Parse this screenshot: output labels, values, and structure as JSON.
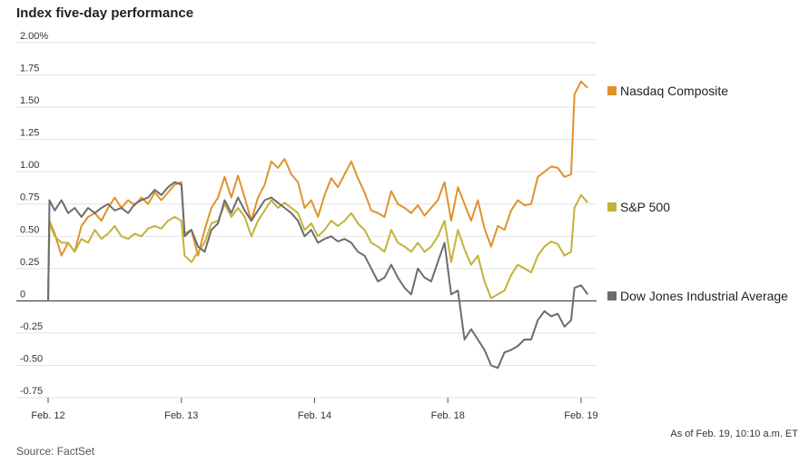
{
  "title": "Index five-day performance",
  "source": "Source: FactSet",
  "as_of": "As of Feb. 19, 10:10 a.m. ET",
  "chart_data": {
    "type": "line",
    "title": "Index five-day performance",
    "xlabel": "",
    "ylabel": "",
    "ylim": [
      -0.75,
      2.0
    ],
    "xlim": [
      0,
      8.2
    ],
    "x_ticks": [
      {
        "value": 0,
        "label": "Feb. 12"
      },
      {
        "value": 2,
        "label": "Feb. 13"
      },
      {
        "value": 4,
        "label": "Feb. 14"
      },
      {
        "value": 6,
        "label": "Feb. 18"
      },
      {
        "value": 8,
        "label": "Feb. 19"
      }
    ],
    "y_ticks": [
      {
        "value": 2.0,
        "label": "2.00%"
      },
      {
        "value": 1.75,
        "label": "1.75"
      },
      {
        "value": 1.5,
        "label": "1.50"
      },
      {
        "value": 1.25,
        "label": "1.25"
      },
      {
        "value": 1.0,
        "label": "1.00"
      },
      {
        "value": 0.75,
        "label": "0.75"
      },
      {
        "value": 0.5,
        "label": "0.50"
      },
      {
        "value": 0.25,
        "label": "0.25"
      },
      {
        "value": 0,
        "label": "0"
      },
      {
        "value": -0.25,
        "label": "-0.25"
      },
      {
        "value": -0.5,
        "label": "-0.50"
      },
      {
        "value": -0.75,
        "label": "-0.75"
      }
    ],
    "grid": "horizontal",
    "legend_position": "right (label at end of each line)",
    "series": [
      {
        "name": "Nasdaq Composite",
        "color": "#e0922c",
        "points": [
          [
            0,
            0
          ],
          [
            0.02,
            0.62
          ],
          [
            0.1,
            0.52
          ],
          [
            0.2,
            0.35
          ],
          [
            0.3,
            0.45
          ],
          [
            0.4,
            0.38
          ],
          [
            0.5,
            0.58
          ],
          [
            0.6,
            0.65
          ],
          [
            0.7,
            0.68
          ],
          [
            0.8,
            0.62
          ],
          [
            0.9,
            0.72
          ],
          [
            1.0,
            0.8
          ],
          [
            1.1,
            0.72
          ],
          [
            1.2,
            0.78
          ],
          [
            1.3,
            0.74
          ],
          [
            1.4,
            0.8
          ],
          [
            1.5,
            0.75
          ],
          [
            1.6,
            0.84
          ],
          [
            1.7,
            0.78
          ],
          [
            1.8,
            0.84
          ],
          [
            1.9,
            0.9
          ],
          [
            2.0,
            0.92
          ],
          [
            2.05,
            0.52
          ],
          [
            2.15,
            0.55
          ],
          [
            2.25,
            0.35
          ],
          [
            2.35,
            0.55
          ],
          [
            2.45,
            0.72
          ],
          [
            2.55,
            0.8
          ],
          [
            2.65,
            0.96
          ],
          [
            2.75,
            0.8
          ],
          [
            2.85,
            0.97
          ],
          [
            2.95,
            0.8
          ],
          [
            3.05,
            0.62
          ],
          [
            3.15,
            0.8
          ],
          [
            3.25,
            0.9
          ],
          [
            3.35,
            1.08
          ],
          [
            3.45,
            1.03
          ],
          [
            3.55,
            1.1
          ],
          [
            3.65,
            0.98
          ],
          [
            3.75,
            0.92
          ],
          [
            3.85,
            0.72
          ],
          [
            3.95,
            0.78
          ],
          [
            4.05,
            0.65
          ],
          [
            4.15,
            0.82
          ],
          [
            4.25,
            0.95
          ],
          [
            4.35,
            0.88
          ],
          [
            4.45,
            0.98
          ],
          [
            4.55,
            1.08
          ],
          [
            4.65,
            0.95
          ],
          [
            4.75,
            0.84
          ],
          [
            4.85,
            0.7
          ],
          [
            4.95,
            0.68
          ],
          [
            5.05,
            0.65
          ],
          [
            5.15,
            0.85
          ],
          [
            5.25,
            0.75
          ],
          [
            5.35,
            0.72
          ],
          [
            5.45,
            0.68
          ],
          [
            5.55,
            0.74
          ],
          [
            5.65,
            0.66
          ],
          [
            5.75,
            0.72
          ],
          [
            5.85,
            0.78
          ],
          [
            5.95,
            0.92
          ],
          [
            6.05,
            0.62
          ],
          [
            6.15,
            0.88
          ],
          [
            6.25,
            0.75
          ],
          [
            6.35,
            0.62
          ],
          [
            6.45,
            0.78
          ],
          [
            6.55,
            0.56
          ],
          [
            6.65,
            0.42
          ],
          [
            6.75,
            0.58
          ],
          [
            6.85,
            0.55
          ],
          [
            6.95,
            0.7
          ],
          [
            7.05,
            0.78
          ],
          [
            7.15,
            0.74
          ],
          [
            7.25,
            0.75
          ],
          [
            7.35,
            0.96
          ],
          [
            7.45,
            1.0
          ],
          [
            7.55,
            1.04
          ],
          [
            7.65,
            1.03
          ],
          [
            7.75,
            0.96
          ],
          [
            7.85,
            0.98
          ],
          [
            7.9,
            1.6
          ],
          [
            8.0,
            1.7
          ],
          [
            8.1,
            1.65
          ]
        ]
      },
      {
        "name": "S&P 500",
        "color": "#c3b33a",
        "points": [
          [
            0,
            0
          ],
          [
            0.02,
            0.6
          ],
          [
            0.1,
            0.5
          ],
          [
            0.2,
            0.45
          ],
          [
            0.3,
            0.45
          ],
          [
            0.4,
            0.38
          ],
          [
            0.5,
            0.48
          ],
          [
            0.6,
            0.45
          ],
          [
            0.7,
            0.55
          ],
          [
            0.8,
            0.48
          ],
          [
            0.9,
            0.52
          ],
          [
            1.0,
            0.58
          ],
          [
            1.1,
            0.5
          ],
          [
            1.2,
            0.48
          ],
          [
            1.3,
            0.52
          ],
          [
            1.4,
            0.5
          ],
          [
            1.5,
            0.56
          ],
          [
            1.6,
            0.58
          ],
          [
            1.7,
            0.56
          ],
          [
            1.8,
            0.62
          ],
          [
            1.9,
            0.65
          ],
          [
            2.0,
            0.62
          ],
          [
            2.05,
            0.35
          ],
          [
            2.15,
            0.3
          ],
          [
            2.25,
            0.38
          ],
          [
            2.35,
            0.45
          ],
          [
            2.45,
            0.6
          ],
          [
            2.55,
            0.62
          ],
          [
            2.65,
            0.75
          ],
          [
            2.75,
            0.65
          ],
          [
            2.85,
            0.72
          ],
          [
            2.95,
            0.65
          ],
          [
            3.05,
            0.5
          ],
          [
            3.15,
            0.62
          ],
          [
            3.25,
            0.7
          ],
          [
            3.35,
            0.78
          ],
          [
            3.45,
            0.72
          ],
          [
            3.55,
            0.76
          ],
          [
            3.65,
            0.72
          ],
          [
            3.75,
            0.68
          ],
          [
            3.85,
            0.55
          ],
          [
            3.95,
            0.6
          ],
          [
            4.05,
            0.5
          ],
          [
            4.15,
            0.55
          ],
          [
            4.25,
            0.62
          ],
          [
            4.35,
            0.58
          ],
          [
            4.45,
            0.62
          ],
          [
            4.55,
            0.68
          ],
          [
            4.65,
            0.6
          ],
          [
            4.75,
            0.55
          ],
          [
            4.85,
            0.45
          ],
          [
            4.95,
            0.42
          ],
          [
            5.05,
            0.38
          ],
          [
            5.15,
            0.55
          ],
          [
            5.25,
            0.45
          ],
          [
            5.35,
            0.42
          ],
          [
            5.45,
            0.38
          ],
          [
            5.55,
            0.45
          ],
          [
            5.65,
            0.38
          ],
          [
            5.75,
            0.42
          ],
          [
            5.85,
            0.5
          ],
          [
            5.95,
            0.62
          ],
          [
            6.05,
            0.3
          ],
          [
            6.15,
            0.55
          ],
          [
            6.25,
            0.4
          ],
          [
            6.35,
            0.28
          ],
          [
            6.45,
            0.35
          ],
          [
            6.55,
            0.15
          ],
          [
            6.65,
            0.02
          ],
          [
            6.75,
            0.05
          ],
          [
            6.85,
            0.08
          ],
          [
            6.95,
            0.2
          ],
          [
            7.05,
            0.28
          ],
          [
            7.15,
            0.25
          ],
          [
            7.25,
            0.22
          ],
          [
            7.35,
            0.35
          ],
          [
            7.45,
            0.42
          ],
          [
            7.55,
            0.46
          ],
          [
            7.65,
            0.44
          ],
          [
            7.75,
            0.35
          ],
          [
            7.85,
            0.38
          ],
          [
            7.9,
            0.72
          ],
          [
            8.0,
            0.82
          ],
          [
            8.1,
            0.76
          ]
        ]
      },
      {
        "name": "Dow Jones Industrial Average",
        "color": "#6d6d6d",
        "points": [
          [
            0,
            0
          ],
          [
            0.02,
            0.78
          ],
          [
            0.1,
            0.7
          ],
          [
            0.2,
            0.78
          ],
          [
            0.3,
            0.68
          ],
          [
            0.4,
            0.72
          ],
          [
            0.5,
            0.65
          ],
          [
            0.6,
            0.72
          ],
          [
            0.7,
            0.68
          ],
          [
            0.8,
            0.72
          ],
          [
            0.9,
            0.75
          ],
          [
            1.0,
            0.7
          ],
          [
            1.1,
            0.72
          ],
          [
            1.2,
            0.68
          ],
          [
            1.3,
            0.75
          ],
          [
            1.4,
            0.78
          ],
          [
            1.5,
            0.8
          ],
          [
            1.6,
            0.86
          ],
          [
            1.7,
            0.82
          ],
          [
            1.8,
            0.88
          ],
          [
            1.9,
            0.92
          ],
          [
            2.0,
            0.9
          ],
          [
            2.05,
            0.5
          ],
          [
            2.15,
            0.55
          ],
          [
            2.25,
            0.42
          ],
          [
            2.35,
            0.38
          ],
          [
            2.45,
            0.55
          ],
          [
            2.55,
            0.6
          ],
          [
            2.65,
            0.78
          ],
          [
            2.75,
            0.68
          ],
          [
            2.85,
            0.8
          ],
          [
            2.95,
            0.7
          ],
          [
            3.05,
            0.62
          ],
          [
            3.15,
            0.7
          ],
          [
            3.25,
            0.78
          ],
          [
            3.35,
            0.8
          ],
          [
            3.45,
            0.76
          ],
          [
            3.55,
            0.72
          ],
          [
            3.65,
            0.68
          ],
          [
            3.75,
            0.62
          ],
          [
            3.85,
            0.5
          ],
          [
            3.95,
            0.55
          ],
          [
            4.05,
            0.45
          ],
          [
            4.15,
            0.48
          ],
          [
            4.25,
            0.5
          ],
          [
            4.35,
            0.46
          ],
          [
            4.45,
            0.48
          ],
          [
            4.55,
            0.45
          ],
          [
            4.65,
            0.38
          ],
          [
            4.75,
            0.35
          ],
          [
            4.85,
            0.25
          ],
          [
            4.95,
            0.15
          ],
          [
            5.05,
            0.18
          ],
          [
            5.15,
            0.28
          ],
          [
            5.25,
            0.18
          ],
          [
            5.35,
            0.1
          ],
          [
            5.45,
            0.05
          ],
          [
            5.55,
            0.25
          ],
          [
            5.65,
            0.18
          ],
          [
            5.75,
            0.15
          ],
          [
            5.85,
            0.3
          ],
          [
            5.95,
            0.45
          ],
          [
            6.05,
            0.05
          ],
          [
            6.15,
            0.08
          ],
          [
            6.25,
            -0.3
          ],
          [
            6.35,
            -0.22
          ],
          [
            6.45,
            -0.3
          ],
          [
            6.55,
            -0.38
          ],
          [
            6.65,
            -0.5
          ],
          [
            6.75,
            -0.52
          ],
          [
            6.85,
            -0.4
          ],
          [
            6.95,
            -0.38
          ],
          [
            7.05,
            -0.35
          ],
          [
            7.15,
            -0.3
          ],
          [
            7.25,
            -0.3
          ],
          [
            7.35,
            -0.15
          ],
          [
            7.45,
            -0.08
          ],
          [
            7.55,
            -0.12
          ],
          [
            7.65,
            -0.1
          ],
          [
            7.75,
            -0.2
          ],
          [
            7.85,
            -0.15
          ],
          [
            7.9,
            0.1
          ],
          [
            8.0,
            0.12
          ],
          [
            8.1,
            0.05
          ]
        ]
      }
    ]
  }
}
